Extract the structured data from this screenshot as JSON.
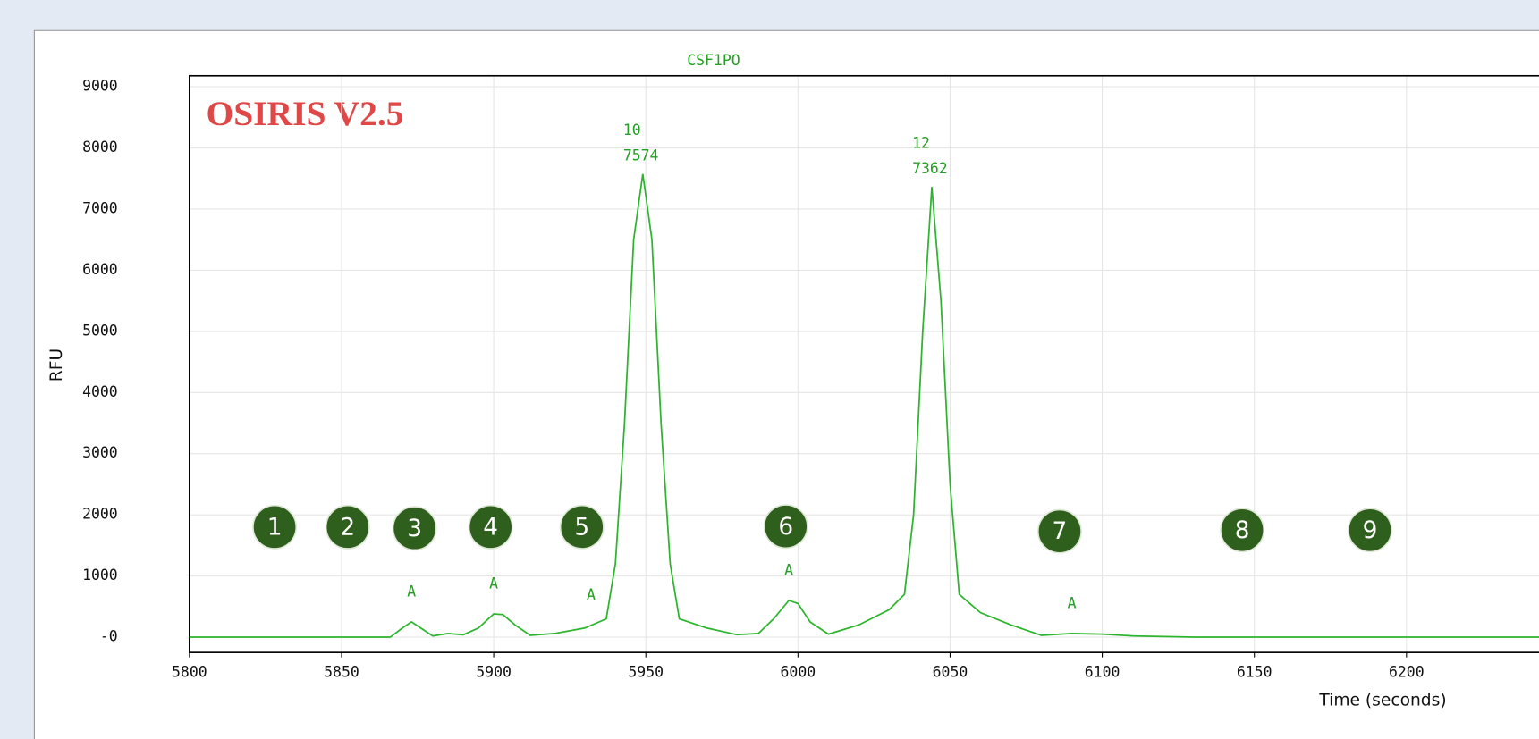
{
  "chart_data": {
    "type": "line",
    "title": "CSF1PO",
    "watermark": "OSIRIS V2.5",
    "x_label": "Time (seconds)",
    "y_label": "RFU",
    "x": [
      5800,
      5866,
      5870,
      5873,
      5876,
      5880,
      5885,
      5890,
      5895,
      5900,
      5903,
      5907,
      5912,
      5920,
      5930,
      5937,
      5940,
      5943,
      5946,
      5949,
      5952,
      5955,
      5958,
      5961,
      5970,
      5980,
      5987,
      5992,
      5997,
      6000,
      6004,
      6010,
      6020,
      6030,
      6035,
      6038,
      6041,
      6044,
      6047,
      6050,
      6053,
      6060,
      6070,
      6080,
      6090,
      6100,
      6110,
      6130,
      6250
    ],
    "series": [
      {
        "color": "#2db52d",
        "values": [
          0,
          0,
          150,
          250,
          150,
          20,
          60,
          40,
          150,
          380,
          370,
          200,
          30,
          60,
          150,
          300,
          1200,
          3500,
          6500,
          7574,
          6500,
          3500,
          1200,
          300,
          150,
          40,
          60,
          300,
          600,
          550,
          250,
          50,
          200,
          450,
          700,
          2000,
          5000,
          7362,
          5500,
          2500,
          700,
          400,
          200,
          30,
          60,
          50,
          20,
          0,
          0
        ]
      }
    ],
    "xlim": [
      5800,
      6250
    ],
    "ylim": [
      -250,
      9180
    ],
    "xticks": [
      5800,
      5850,
      5900,
      5950,
      6000,
      6050,
      6100,
      6150,
      6200,
      6250
    ],
    "yticks": [
      {
        "value": 0,
        "label": "-0"
      },
      1000,
      2000,
      3000,
      4000,
      5000,
      6000,
      7000,
      8000,
      9000
    ],
    "grid": true,
    "peak_labels": [
      {
        "allele": "10",
        "x": 5949,
        "y": 7574
      },
      {
        "allele": "12",
        "x": 6044,
        "y": 7362
      }
    ],
    "artifact_labels": [
      {
        "text": "A",
        "x": 5873,
        "y": 250
      },
      {
        "text": "A",
        "x": 5900,
        "y": 380
      },
      {
        "text": "A",
        "x": 5932,
        "y": 200
      },
      {
        "text": "A",
        "x": 5997,
        "y": 600
      },
      {
        "text": "A",
        "x": 6090,
        "y": 60
      }
    ],
    "markers": [
      {
        "label": "1",
        "x": 5828,
        "y": 1800
      },
      {
        "label": "2",
        "x": 5852,
        "y": 1800
      },
      {
        "label": "3",
        "x": 5874,
        "y": 1780
      },
      {
        "label": "4",
        "x": 5899,
        "y": 1800
      },
      {
        "label": "5",
        "x": 5929,
        "y": 1800
      },
      {
        "label": "6",
        "x": 5996,
        "y": 1810
      },
      {
        "label": "7",
        "x": 6086,
        "y": 1730
      },
      {
        "label": "8",
        "x": 6146,
        "y": 1750
      },
      {
        "label": "9",
        "x": 6188,
        "y": 1750
      }
    ]
  }
}
